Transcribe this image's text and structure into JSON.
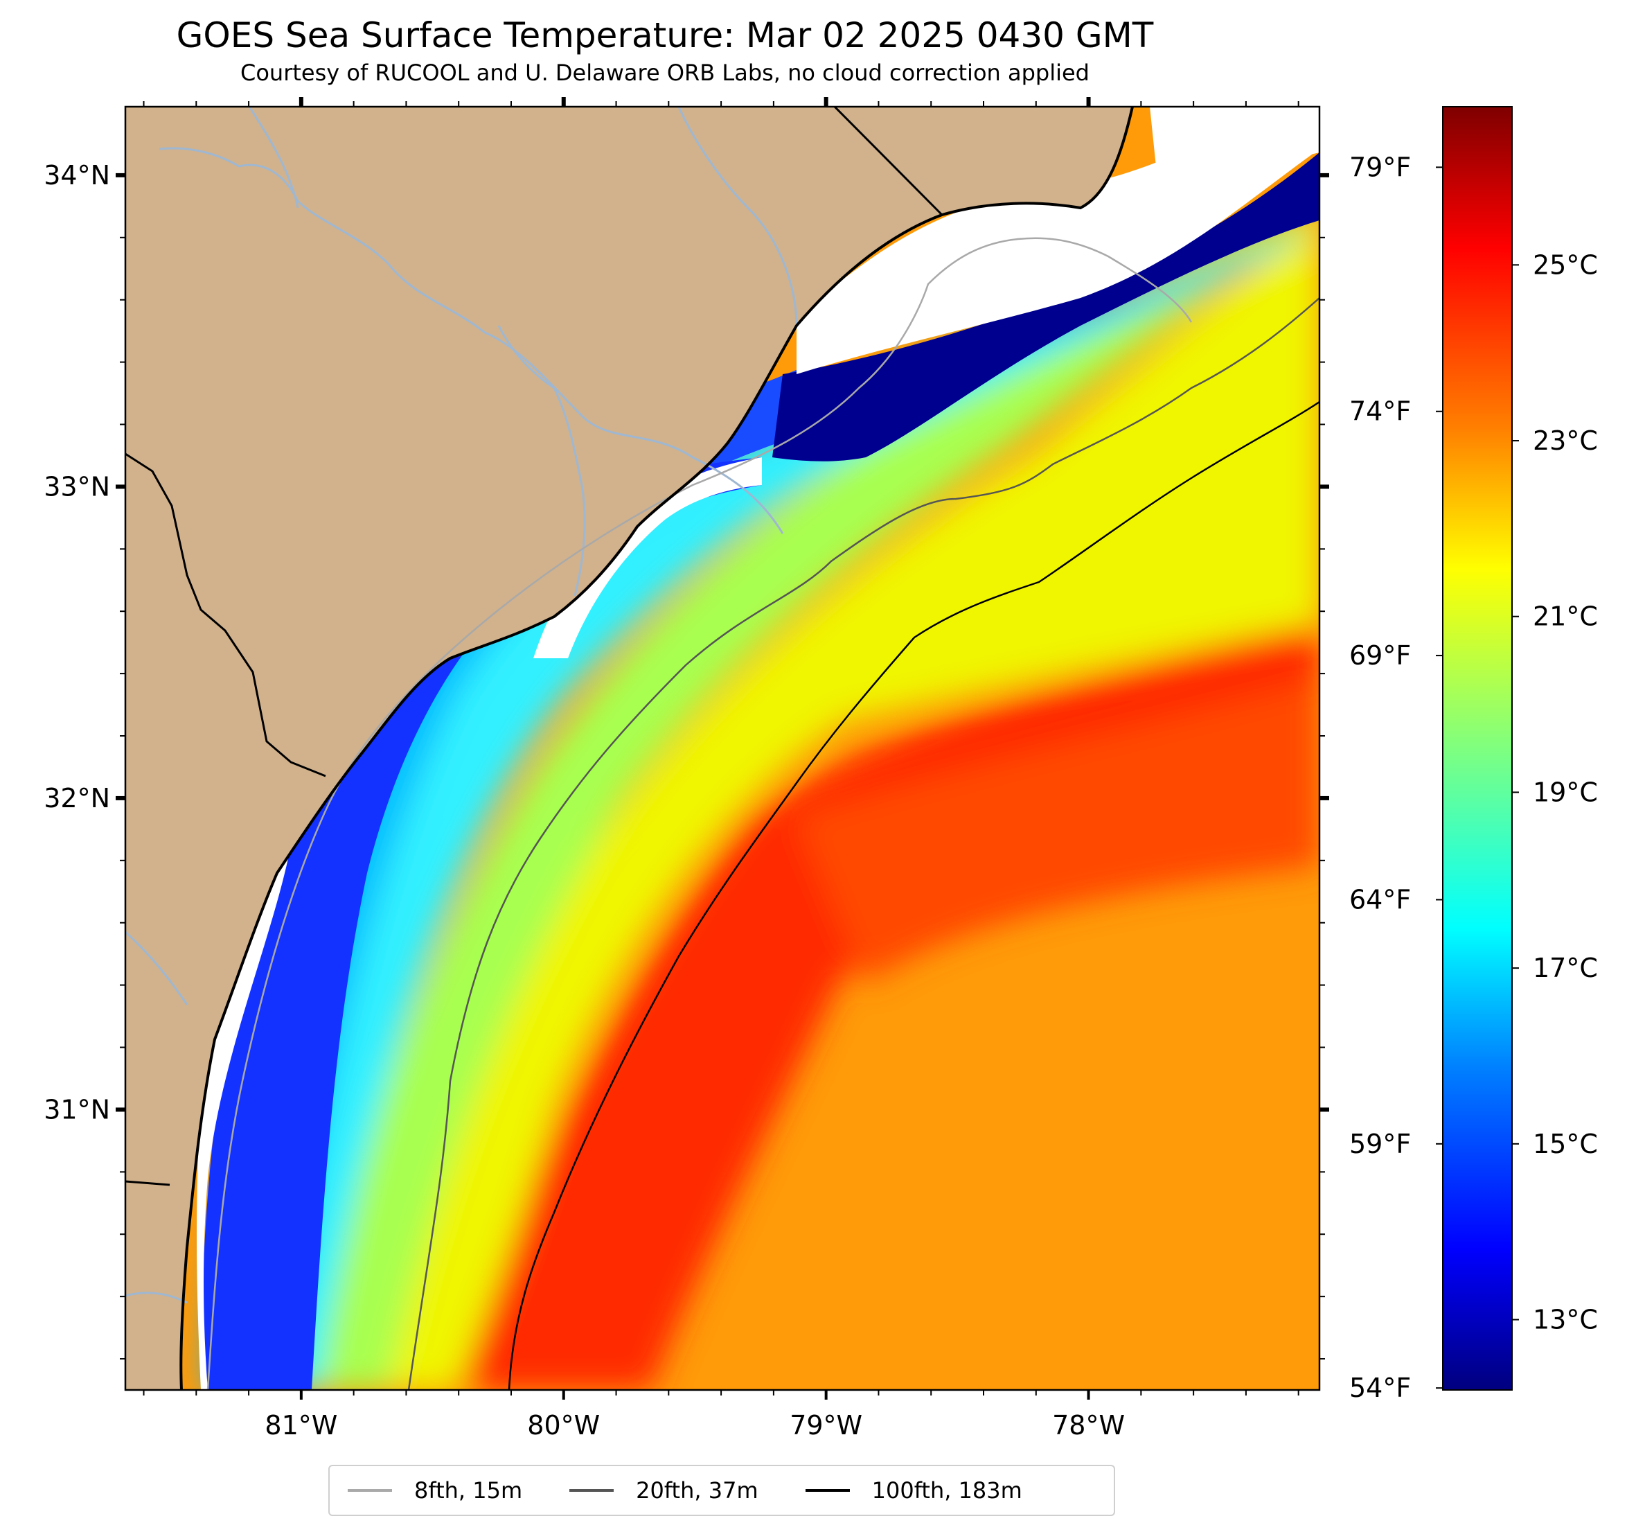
{
  "title": "GOES Sea Surface Temperature: Mar 02 2025 0430 GMT",
  "subtitle": "Courtesy of RUCOOL and U. Delaware ORB Labs, no cloud correction applied",
  "map": {
    "lat_labels": [
      "34°N",
      "33°N",
      "32°N",
      "31°N"
    ],
    "lon_labels": [
      "81°W",
      "80°W",
      "79°W",
      "78°W"
    ],
    "extent": {
      "lon_min": -81.67,
      "lon_max": -77.12,
      "lat_min": 30.1,
      "lat_max": 34.22
    }
  },
  "colorbar": {
    "celsius_labels": [
      "25°C",
      "23°C",
      "21°C",
      "19°C",
      "17°C",
      "15°C",
      "13°C"
    ],
    "fahrenheit_labels": [
      "79°F",
      "74°F",
      "69°F",
      "64°F",
      "59°F",
      "54°F"
    ],
    "range_c": [
      12.2,
      26.8
    ],
    "colors": [
      "#00007f",
      "#0000ff",
      "#007fff",
      "#00ffff",
      "#7fff7f",
      "#ffff00",
      "#ff7f00",
      "#ff0000",
      "#7f0000"
    ]
  },
  "legend": [
    {
      "label": "8fth, 15m",
      "color": "#a9a9a9"
    },
    {
      "label": "20fth, 37m",
      "color": "#555555"
    },
    {
      "label": "100fth, 183m",
      "color": "#000000"
    }
  ],
  "colors": {
    "land": "#d1b28c",
    "river": "#9fb7d1",
    "no_data": "#ffffff"
  }
}
